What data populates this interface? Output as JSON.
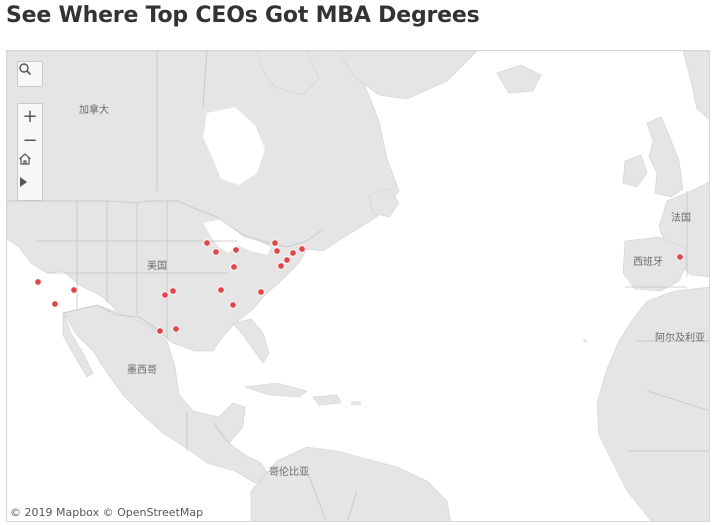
{
  "title": "See Where Top CEOs Got MBA Degrees",
  "attribution": "© 2019 Mapbox © OpenStreetMap",
  "map_controls": {
    "search": "search-icon",
    "zoom_in": "+",
    "zoom_out": "−",
    "home": "home-icon",
    "play": "play-icon"
  },
  "country_labels": {
    "canada": "加拿大",
    "usa": "美国",
    "mexico": "墨西哥",
    "france": "法国",
    "spain": "西班牙",
    "algeria": "阿尔及利亚",
    "colombia": "哥伦比亚"
  },
  "marker_color": "#e0474c",
  "land_color": "#e5e5e5",
  "water_color": "#ffffff",
  "border_color": "#c4c4c4"
}
